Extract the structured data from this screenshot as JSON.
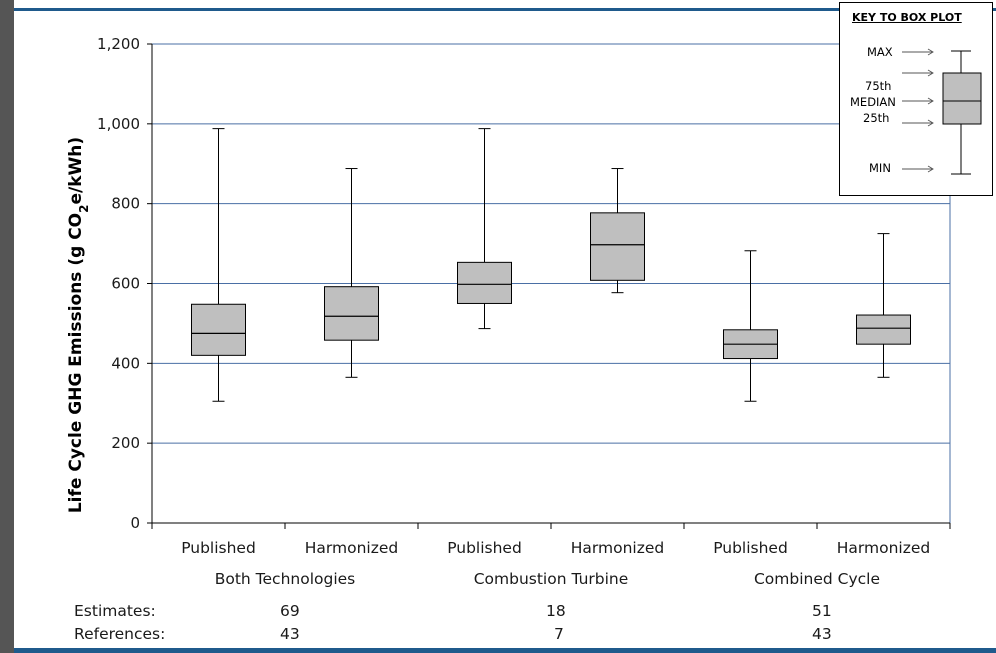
{
  "chart_data": {
    "type": "boxplot",
    "ylabel": "Life Cycle GHG Emissions (g CO2e/kWh)",
    "ylabel_parts": {
      "pre": "Life Cycle GHG Emissions (g CO",
      "sub": "2",
      "post": "e/kWh)"
    },
    "ylim": [
      0,
      1200
    ],
    "yticks": [
      "0",
      "200",
      "400",
      "600",
      "800",
      "1,000",
      "1,200"
    ],
    "ytick_values": [
      0,
      200,
      400,
      600,
      800,
      1000,
      1200
    ],
    "grid": true,
    "groups": [
      "Both Technologies",
      "Combustion Turbine",
      "Combined Cycle"
    ],
    "boxes": [
      {
        "label": "Published",
        "group": "Both Technologies",
        "min": 305,
        "q1": 420,
        "median": 475,
        "q3": 548,
        "max": 988
      },
      {
        "label": "Harmonized",
        "group": "Both Technologies",
        "min": 365,
        "q1": 458,
        "median": 518,
        "q3": 592,
        "max": 888
      },
      {
        "label": "Published",
        "group": "Combustion Turbine",
        "min": 487,
        "q1": 550,
        "median": 598,
        "q3": 653,
        "max": 988
      },
      {
        "label": "Harmonized",
        "group": "Combustion Turbine",
        "min": 577,
        "q1": 608,
        "median": 697,
        "q3": 777,
        "max": 888
      },
      {
        "label": "Published",
        "group": "Combined Cycle",
        "min": 305,
        "q1": 412,
        "median": 448,
        "q3": 484,
        "max": 682
      },
      {
        "label": "Harmonized",
        "group": "Combined Cycle",
        "min": 365,
        "q1": 448,
        "median": 488,
        "q3": 521,
        "max": 725
      }
    ],
    "stats": {
      "estimates_label": "Estimates:",
      "references_label": "References:",
      "estimates": [
        "69",
        "18",
        "51"
      ],
      "references": [
        "43",
        "7",
        "43"
      ]
    },
    "colors": {
      "box_fill": "#bfbfbf",
      "grid": "#4a6fa5",
      "axis": "#000000"
    }
  },
  "key": {
    "title": "KEY TO BOX PLOT",
    "max": "MAX",
    "p75": "75th",
    "median": "MEDIAN",
    "p25": "25th",
    "min": "MIN"
  }
}
